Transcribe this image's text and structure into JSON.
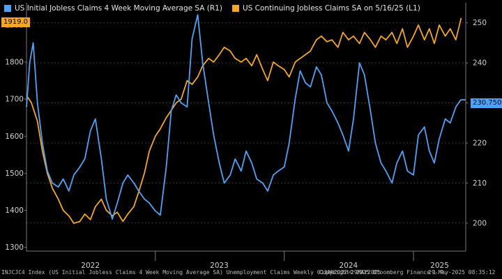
{
  "legend": [
    {
      "label": "US Initial Jobless Claims 4 Week Moving Average SA  (R1)",
      "color": "#4fa3f7"
    },
    {
      "label": "US Continuing Jobless Claims SA  on 5/16/25 (L1)",
      "color": "#f5a623"
    }
  ],
  "last_value_tags": {
    "left": "1919.0",
    "right": "230.750"
  },
  "footer": {
    "source": "INJCJC4 Index (US Initial Jobless Claims 4 Week Moving Average SA) Unemployment Claims  Weekly 01JAN2022-29MAY2025",
    "copyright": "Copyright© 2025 Bloomberg Finance L.P.",
    "timestamp": "29-May-2025 08:35:12"
  },
  "chart_data": {
    "type": "line",
    "title": "",
    "x_range": [
      "2022-01-01",
      "2025-05-29"
    ],
    "x_tick_labels": [
      "2022",
      "2023",
      "2024",
      "2025"
    ],
    "left_axis": {
      "label": "",
      "range": [
        1290,
        1960
      ],
      "ticks": [
        1300,
        1400,
        1500,
        1600,
        1700,
        1800,
        1900
      ]
    },
    "right_axis": {
      "label": "",
      "range": [
        193,
        255
      ],
      "ticks": [
        200,
        210,
        220,
        230,
        240,
        250
      ]
    },
    "grid": true,
    "series": [
      {
        "name": "US Continuing Jobless Claims SA  on 5/16/25 (L1)",
        "axis": "left",
        "color": "#f5a623",
        "x": [
          "2022-01-01",
          "2022-01-15",
          "2022-02-01",
          "2022-02-15",
          "2022-03-01",
          "2022-03-15",
          "2022-04-01",
          "2022-04-15",
          "2022-05-01",
          "2022-05-15",
          "2022-06-01",
          "2022-06-15",
          "2022-07-01",
          "2022-07-15",
          "2022-08-01",
          "2022-08-15",
          "2022-09-01",
          "2022-09-15",
          "2022-10-01",
          "2022-10-15",
          "2022-11-01",
          "2022-11-15",
          "2022-12-01",
          "2022-12-15",
          "2023-01-01",
          "2023-01-15",
          "2023-02-01",
          "2023-02-15",
          "2023-03-01",
          "2023-03-15",
          "2023-04-01",
          "2023-04-15",
          "2023-05-01",
          "2023-05-15",
          "2023-06-01",
          "2023-06-15",
          "2023-07-01",
          "2023-07-15",
          "2023-08-01",
          "2023-08-15",
          "2023-09-01",
          "2023-09-15",
          "2023-10-01",
          "2023-10-15",
          "2023-11-01",
          "2023-11-15",
          "2023-12-01",
          "2023-12-15",
          "2024-01-01",
          "2024-01-15",
          "2024-02-01",
          "2024-02-15",
          "2024-03-01",
          "2024-03-15",
          "2024-04-01",
          "2024-04-15",
          "2024-05-01",
          "2024-05-15",
          "2024-06-01",
          "2024-06-15",
          "2024-07-01",
          "2024-07-15",
          "2024-08-01",
          "2024-08-15",
          "2024-09-01",
          "2024-09-15",
          "2024-10-01",
          "2024-10-15",
          "2024-11-01",
          "2024-11-15",
          "2024-12-01",
          "2024-12-15",
          "2025-01-01",
          "2025-01-15",
          "2025-02-01",
          "2025-02-15",
          "2025-03-01",
          "2025-03-15",
          "2025-04-01",
          "2025-04-15",
          "2025-05-01",
          "2025-05-16"
        ],
        "values": [
          1710,
          1690,
          1640,
          1560,
          1500,
          1460,
          1430,
          1400,
          1385,
          1365,
          1370,
          1390,
          1375,
          1410,
          1430,
          1400,
          1385,
          1395,
          1370,
          1390,
          1410,
          1450,
          1500,
          1560,
          1600,
          1620,
          1650,
          1670,
          1690,
          1700,
          1750,
          1740,
          1760,
          1790,
          1810,
          1800,
          1820,
          1840,
          1830,
          1810,
          1800,
          1810,
          1790,
          1820,
          1780,
          1750,
          1800,
          1790,
          1780,
          1760,
          1800,
          1810,
          1820,
          1830,
          1860,
          1870,
          1855,
          1860,
          1840,
          1880,
          1860,
          1870,
          1850,
          1880,
          1860,
          1840,
          1870,
          1860,
          1880,
          1850,
          1890,
          1840,
          1870,
          1900,
          1860,
          1890,
          1850,
          1900,
          1870,
          1890,
          1860,
          1919
        ]
      },
      {
        "name": "US Initial Jobless Claims 4 Week Moving Average SA  (R1)",
        "axis": "right",
        "color": "#4fa3f7",
        "x": [
          "2022-01-01",
          "2022-01-10",
          "2022-01-20",
          "2022-02-01",
          "2022-02-15",
          "2022-03-01",
          "2022-03-15",
          "2022-04-01",
          "2022-04-15",
          "2022-05-01",
          "2022-05-15",
          "2022-06-01",
          "2022-06-15",
          "2022-07-01",
          "2022-07-15",
          "2022-08-01",
          "2022-08-15",
          "2022-09-01",
          "2022-09-15",
          "2022-10-01",
          "2022-10-15",
          "2022-11-01",
          "2022-11-15",
          "2022-12-01",
          "2022-12-15",
          "2023-01-01",
          "2023-01-15",
          "2023-02-01",
          "2023-02-15",
          "2023-03-01",
          "2023-03-15",
          "2023-04-01",
          "2023-04-15",
          "2023-05-01",
          "2023-05-15",
          "2023-06-01",
          "2023-06-15",
          "2023-07-01",
          "2023-07-15",
          "2023-08-01",
          "2023-08-15",
          "2023-09-01",
          "2023-09-15",
          "2023-10-01",
          "2023-10-15",
          "2023-11-01",
          "2023-11-15",
          "2023-12-01",
          "2023-12-15",
          "2024-01-01",
          "2024-01-15",
          "2024-02-01",
          "2024-02-15",
          "2024-03-01",
          "2024-03-15",
          "2024-04-01",
          "2024-04-15",
          "2024-05-01",
          "2024-05-15",
          "2024-06-01",
          "2024-06-15",
          "2024-07-01",
          "2024-07-15",
          "2024-08-01",
          "2024-08-15",
          "2024-09-01",
          "2024-09-15",
          "2024-10-01",
          "2024-10-15",
          "2024-11-01",
          "2024-11-15",
          "2024-12-01",
          "2024-12-15",
          "2025-01-01",
          "2025-01-15",
          "2025-02-01",
          "2025-02-15",
          "2025-03-01",
          "2025-03-15",
          "2025-04-01",
          "2025-04-15",
          "2025-05-01",
          "2025-05-15",
          "2025-05-29"
        ],
        "values": [
          229,
          240,
          245,
          230,
          220,
          213,
          210,
          209,
          211,
          208,
          212,
          214,
          216,
          223,
          226,
          216,
          206,
          201,
          205,
          210,
          212,
          210,
          208,
          206,
          205,
          203,
          202,
          214,
          228,
          232,
          230,
          229,
          246,
          252,
          240,
          230,
          222,
          215,
          210,
          212,
          216,
          213,
          218,
          215,
          211,
          210,
          208,
          212,
          213,
          214,
          220,
          231,
          238,
          235,
          234,
          239,
          237,
          230,
          228,
          225,
          222,
          218,
          226,
          240,
          237,
          228,
          220,
          215,
          213,
          210,
          215,
          218,
          213,
          212,
          222,
          224,
          218,
          215,
          221,
          226,
          225,
          229,
          230.75,
          230.75
        ]
      }
    ]
  }
}
